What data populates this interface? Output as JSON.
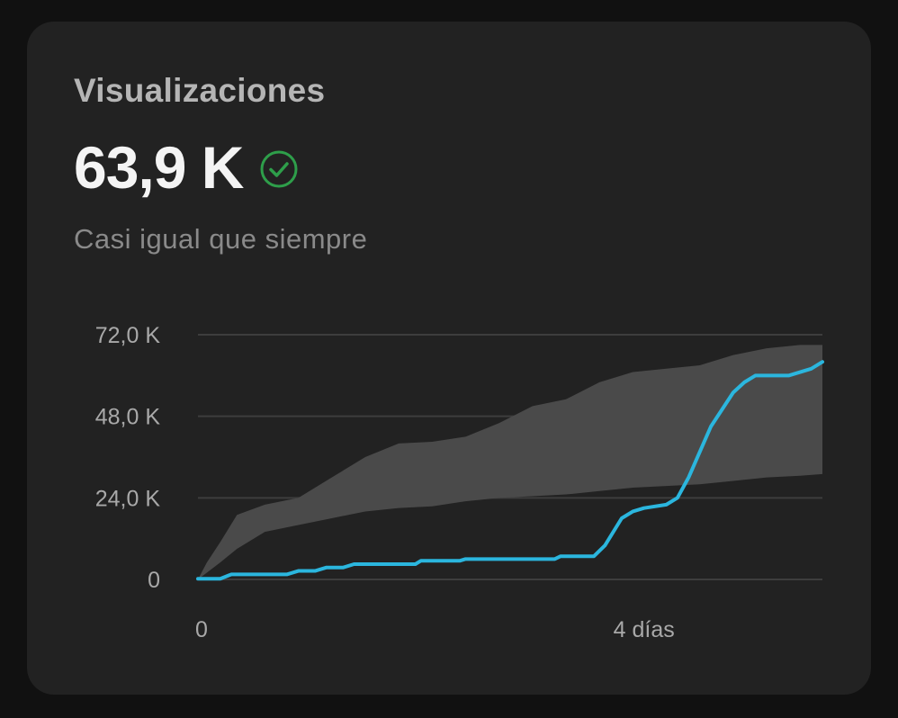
{
  "card": {
    "title": "Visualizaciones",
    "metric": "63,9 K",
    "status_icon": "check-circle-icon",
    "subtitle": "Casi igual que siempre"
  },
  "colors": {
    "background": "#111111",
    "card": "#222222",
    "series_line": "#2bb6de",
    "band": "#4a4a4a",
    "check": "#2e9e4a",
    "grid": "#3d3d3d"
  },
  "chart_data": {
    "type": "line",
    "y_ticks": [
      {
        "value": 0,
        "label": "0"
      },
      {
        "value": 24000,
        "label": "24,0 K"
      },
      {
        "value": 48000,
        "label": "48,0 K"
      },
      {
        "value": 72000,
        "label": "72,0 K"
      }
    ],
    "x_ticks": [
      {
        "value": 0,
        "label": "0"
      },
      {
        "value": 4,
        "label": "4 días"
      }
    ],
    "xlim": [
      0,
      5.6
    ],
    "ylim": [
      0,
      72000
    ],
    "grid": true,
    "band": {
      "x": [
        0,
        0.08,
        0.2,
        0.35,
        0.6,
        0.9,
        1.2,
        1.5,
        1.8,
        2.1,
        2.4,
        2.7,
        3.0,
        3.3,
        3.6,
        3.9,
        4.2,
        4.5,
        4.8,
        5.1,
        5.4,
        5.6
      ],
      "upper": [
        0,
        5000,
        11000,
        19000,
        22000,
        24000,
        30000,
        36000,
        40000,
        40500,
        42000,
        46000,
        51000,
        53000,
        58000,
        61000,
        62000,
        63000,
        66000,
        68000,
        69000,
        69000
      ],
      "lower": [
        0,
        2000,
        5000,
        9000,
        14000,
        16000,
        18000,
        20000,
        21000,
        21500,
        23000,
        24000,
        24500,
        25000,
        26000,
        27000,
        27500,
        28000,
        29000,
        30000,
        30500,
        31000
      ]
    },
    "series": [
      {
        "x": [
          0,
          0.2,
          0.3,
          0.8,
          0.9,
          1.05,
          1.15,
          1.3,
          1.4,
          1.95,
          2.0,
          2.35,
          2.4,
          3.2,
          3.25,
          3.55,
          3.65,
          3.8,
          3.9,
          4.0,
          4.2,
          4.3,
          4.4,
          4.6,
          4.8,
          4.9,
          5.0,
          5.1,
          5.3,
          5.4,
          5.5,
          5.6
        ],
        "y": [
          200,
          200,
          1500,
          1500,
          2500,
          2500,
          3500,
          3500,
          4500,
          4500,
          5500,
          5500,
          6000,
          6000,
          6800,
          6800,
          10000,
          18000,
          20000,
          21000,
          22000,
          24000,
          30000,
          45000,
          55000,
          58000,
          60000,
          60000,
          60000,
          61000,
          62000,
          64000
        ]
      }
    ]
  }
}
